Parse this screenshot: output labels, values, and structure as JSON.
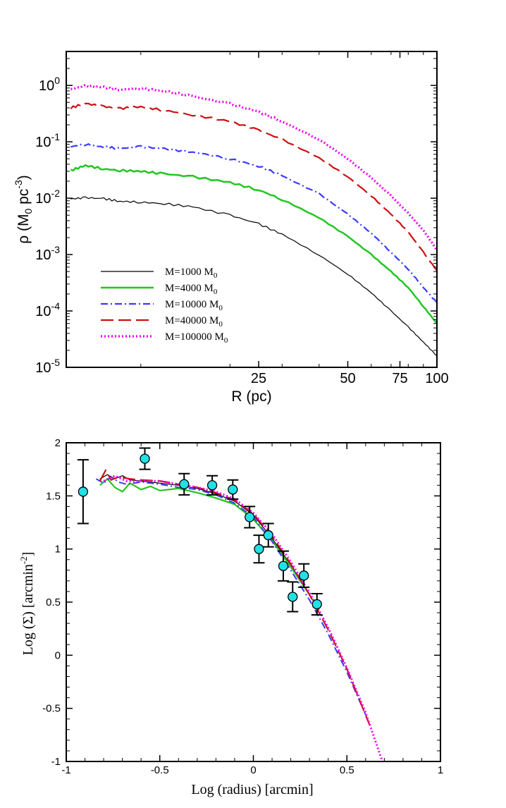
{
  "chart_data": [
    {
      "type": "line",
      "xscale": "log",
      "yscale": "log",
      "xlim": [
        5.6,
        100
      ],
      "ylim": [
        1e-05,
        4
      ],
      "xlabel": "R (pc)",
      "ylabel": "ρ (M0 pc-3)",
      "ylabel_parts": {
        "sym": "ρ (M",
        "sub": "0",
        "mid": " pc",
        "sup": "-3",
        "end": ")"
      },
      "x_ticks": [
        25,
        50,
        75,
        100
      ],
      "x_tick_labels": [
        "25",
        "50",
        "75",
        "100"
      ],
      "y_ticks": [
        {
          "value": 1,
          "base": "10",
          "exp": "0"
        },
        {
          "value": 0.1,
          "base": "10",
          "exp": "-1"
        },
        {
          "value": 0.01,
          "base": "10",
          "exp": "-2"
        },
        {
          "value": 0.001,
          "base": "10",
          "exp": "-3"
        },
        {
          "value": 0.0001,
          "base": "10",
          "exp": "-4"
        },
        {
          "value": 1e-05,
          "base": "10",
          "exp": "-5"
        }
      ],
      "legend_position": "lower-left",
      "series": [
        {
          "name": "M=1000 M0",
          "label_main": "M=1000 M",
          "label_sub": "0",
          "color": "#000000",
          "style": "solid",
          "width": 1.2,
          "x": [
            5.8,
            6.5,
            7.5,
            8.5,
            10,
            12,
            15,
            20,
            25,
            30,
            40,
            50,
            60,
            70,
            80,
            90,
            100
          ],
          "y": [
            0.0097,
            0.0102,
            0.0098,
            0.0088,
            0.0085,
            0.008,
            0.007,
            0.005,
            0.0035,
            0.0023,
            0.00098,
            0.00045,
            0.00021,
            0.0001,
            5.2e-05,
            2.8e-05,
            1.6e-05
          ]
        },
        {
          "name": "M=4000 M0",
          "label_main": "M=4000 M",
          "label_sub": "0",
          "color": "#22c622",
          "style": "solid",
          "width": 2.5,
          "x": [
            5.8,
            6.5,
            7.5,
            8.5,
            10,
            12,
            15,
            20,
            25,
            30,
            40,
            50,
            60,
            70,
            80,
            90,
            100
          ],
          "y": [
            0.031,
            0.038,
            0.033,
            0.031,
            0.03,
            0.027,
            0.024,
            0.019,
            0.014,
            0.0095,
            0.0045,
            0.0021,
            0.001,
            0.0005,
            0.00026,
            0.00012,
            6e-05
          ]
        },
        {
          "name": "M=10000 M0",
          "label_main": "M=10000 M",
          "label_sub": "0",
          "color": "#3a3aff",
          "style": "dashdot",
          "width": 2.2,
          "x": [
            5.8,
            6.5,
            7.5,
            8.5,
            10,
            12,
            15,
            20,
            25,
            30,
            40,
            50,
            60,
            70,
            80,
            90,
            100
          ],
          "y": [
            0.082,
            0.09,
            0.081,
            0.076,
            0.082,
            0.075,
            0.066,
            0.05,
            0.037,
            0.025,
            0.012,
            0.0052,
            0.0024,
            0.0011,
            0.00055,
            0.00026,
            0.00014
          ]
        },
        {
          "name": "M=40000  M0",
          "label_main": "M=40000  M",
          "label_sub": "0",
          "color": "#cc1111",
          "style": "longdash",
          "width": 2.2,
          "x": [
            5.8,
            6.5,
            7.5,
            8.5,
            10,
            12,
            15,
            20,
            25,
            30,
            40,
            50,
            60,
            70,
            80,
            90,
            100
          ],
          "y": [
            0.4,
            0.48,
            0.42,
            0.39,
            0.42,
            0.36,
            0.3,
            0.23,
            0.16,
            0.11,
            0.052,
            0.024,
            0.011,
            0.0052,
            0.0025,
            0.0011,
            0.00052
          ]
        },
        {
          "name": "M=100000 M0",
          "label_main": "M=100000 M",
          "label_sub": "0",
          "color": "#ee00ee",
          "style": "dotted",
          "width": 3.2,
          "x": [
            5.8,
            6.5,
            7.5,
            8.5,
            10,
            12,
            15,
            20,
            25,
            30,
            40,
            50,
            60,
            70,
            80,
            90,
            100
          ],
          "y": [
            0.85,
            0.98,
            0.93,
            0.84,
            0.89,
            0.79,
            0.64,
            0.47,
            0.34,
            0.23,
            0.11,
            0.05,
            0.023,
            0.011,
            0.0054,
            0.0027,
            0.0012
          ]
        }
      ]
    },
    {
      "type": "scatter",
      "xlim": [
        -1,
        1
      ],
      "ylim": [
        -1,
        2
      ],
      "xlabel": "Log (radius) [arcmin]",
      "ylabel": "Log (Σ) [arcmin-2]",
      "ylabel_parts": {
        "main": "Log (Σ) [arcmin",
        "sup": "-2",
        "end": "]"
      },
      "x_ticks": [
        -1,
        -0.5,
        0,
        0.5,
        1
      ],
      "x_tick_labels": [
        "-1",
        "-0.5",
        "0",
        "0.5",
        "1"
      ],
      "y_ticks": [
        -1,
        -0.5,
        0,
        0.5,
        1,
        1.5,
        2
      ],
      "y_tick_labels": [
        "-1",
        "-0.5",
        "0",
        "0.5",
        "1",
        "1.5",
        "2"
      ],
      "grid": false,
      "points": {
        "color": "#22e0e6",
        "x": [
          -0.91,
          -0.58,
          -0.37,
          -0.22,
          -0.11,
          -0.02,
          0.03,
          0.08,
          0.16,
          0.21,
          0.27,
          0.34
        ],
        "y": [
          1.54,
          1.85,
          1.61,
          1.6,
          1.56,
          1.3,
          1.0,
          1.13,
          0.84,
          0.55,
          0.75,
          0.48
        ],
        "err": [
          0.3,
          0.1,
          0.1,
          0.09,
          0.09,
          0.1,
          0.13,
          0.11,
          0.14,
          0.14,
          0.11,
          0.1
        ]
      },
      "series": [
        {
          "color": "#000000",
          "style": "solid",
          "width": 1.2,
          "x": [
            -0.82,
            -0.78,
            -0.74,
            -0.7,
            -0.66,
            -0.6,
            -0.5,
            -0.4,
            -0.3,
            -0.2,
            -0.1,
            0.0,
            0.1,
            0.2,
            0.3,
            0.35
          ],
          "y": [
            1.66,
            1.7,
            1.66,
            1.69,
            1.65,
            1.64,
            1.62,
            1.6,
            1.57,
            1.52,
            1.45,
            1.32,
            1.1,
            0.85,
            0.57,
            0.42
          ]
        },
        {
          "color": "#22c622",
          "style": "solid",
          "width": 2.2,
          "x": [
            -0.82,
            -0.78,
            -0.74,
            -0.7,
            -0.66,
            -0.6,
            -0.55,
            -0.5,
            -0.4,
            -0.3,
            -0.2,
            -0.1,
            0.0,
            0.1,
            0.2,
            0.3,
            0.35
          ],
          "y": [
            1.6,
            1.66,
            1.58,
            1.54,
            1.62,
            1.56,
            1.59,
            1.55,
            1.57,
            1.53,
            1.48,
            1.42,
            1.28,
            1.08,
            0.83,
            0.57,
            0.42
          ]
        },
        {
          "color": "#3a3aff",
          "style": "dashdot",
          "width": 2.0,
          "x": [
            -0.84,
            -0.8,
            -0.76,
            -0.72,
            -0.68,
            -0.6,
            -0.5,
            -0.4,
            -0.3,
            -0.2,
            -0.1,
            0.0,
            0.1,
            0.2,
            0.3,
            0.4,
            0.5,
            0.6
          ],
          "y": [
            1.66,
            1.62,
            1.68,
            1.63,
            1.61,
            1.63,
            1.61,
            1.58,
            1.56,
            1.51,
            1.43,
            1.3,
            1.07,
            0.8,
            0.52,
            0.2,
            -0.16,
            -0.56
          ]
        },
        {
          "color": "#cc1111",
          "style": "longdash",
          "width": 2.2,
          "x": [
            -0.82,
            -0.79,
            -0.76,
            -0.72,
            -0.66,
            -0.6,
            -0.5,
            -0.4,
            -0.3,
            -0.2,
            -0.1,
            0.0,
            0.1,
            0.2,
            0.3,
            0.4,
            0.5,
            0.62
          ],
          "y": [
            1.64,
            1.74,
            1.65,
            1.68,
            1.66,
            1.65,
            1.64,
            1.61,
            1.58,
            1.53,
            1.46,
            1.33,
            1.12,
            0.86,
            0.57,
            0.24,
            -0.13,
            -0.65
          ]
        },
        {
          "color": "#ee00ee",
          "style": "dotted",
          "width": 3.0,
          "x": [
            -0.8,
            -0.74,
            -0.68,
            -0.6,
            -0.5,
            -0.4,
            -0.3,
            -0.2,
            -0.1,
            0.0,
            0.1,
            0.2,
            0.3,
            0.4,
            0.5,
            0.6,
            0.69
          ],
          "y": [
            1.64,
            1.69,
            1.64,
            1.64,
            1.64,
            1.61,
            1.58,
            1.54,
            1.47,
            1.34,
            1.14,
            0.88,
            0.59,
            0.26,
            -0.12,
            -0.54,
            -1.0
          ]
        }
      ]
    }
  ]
}
